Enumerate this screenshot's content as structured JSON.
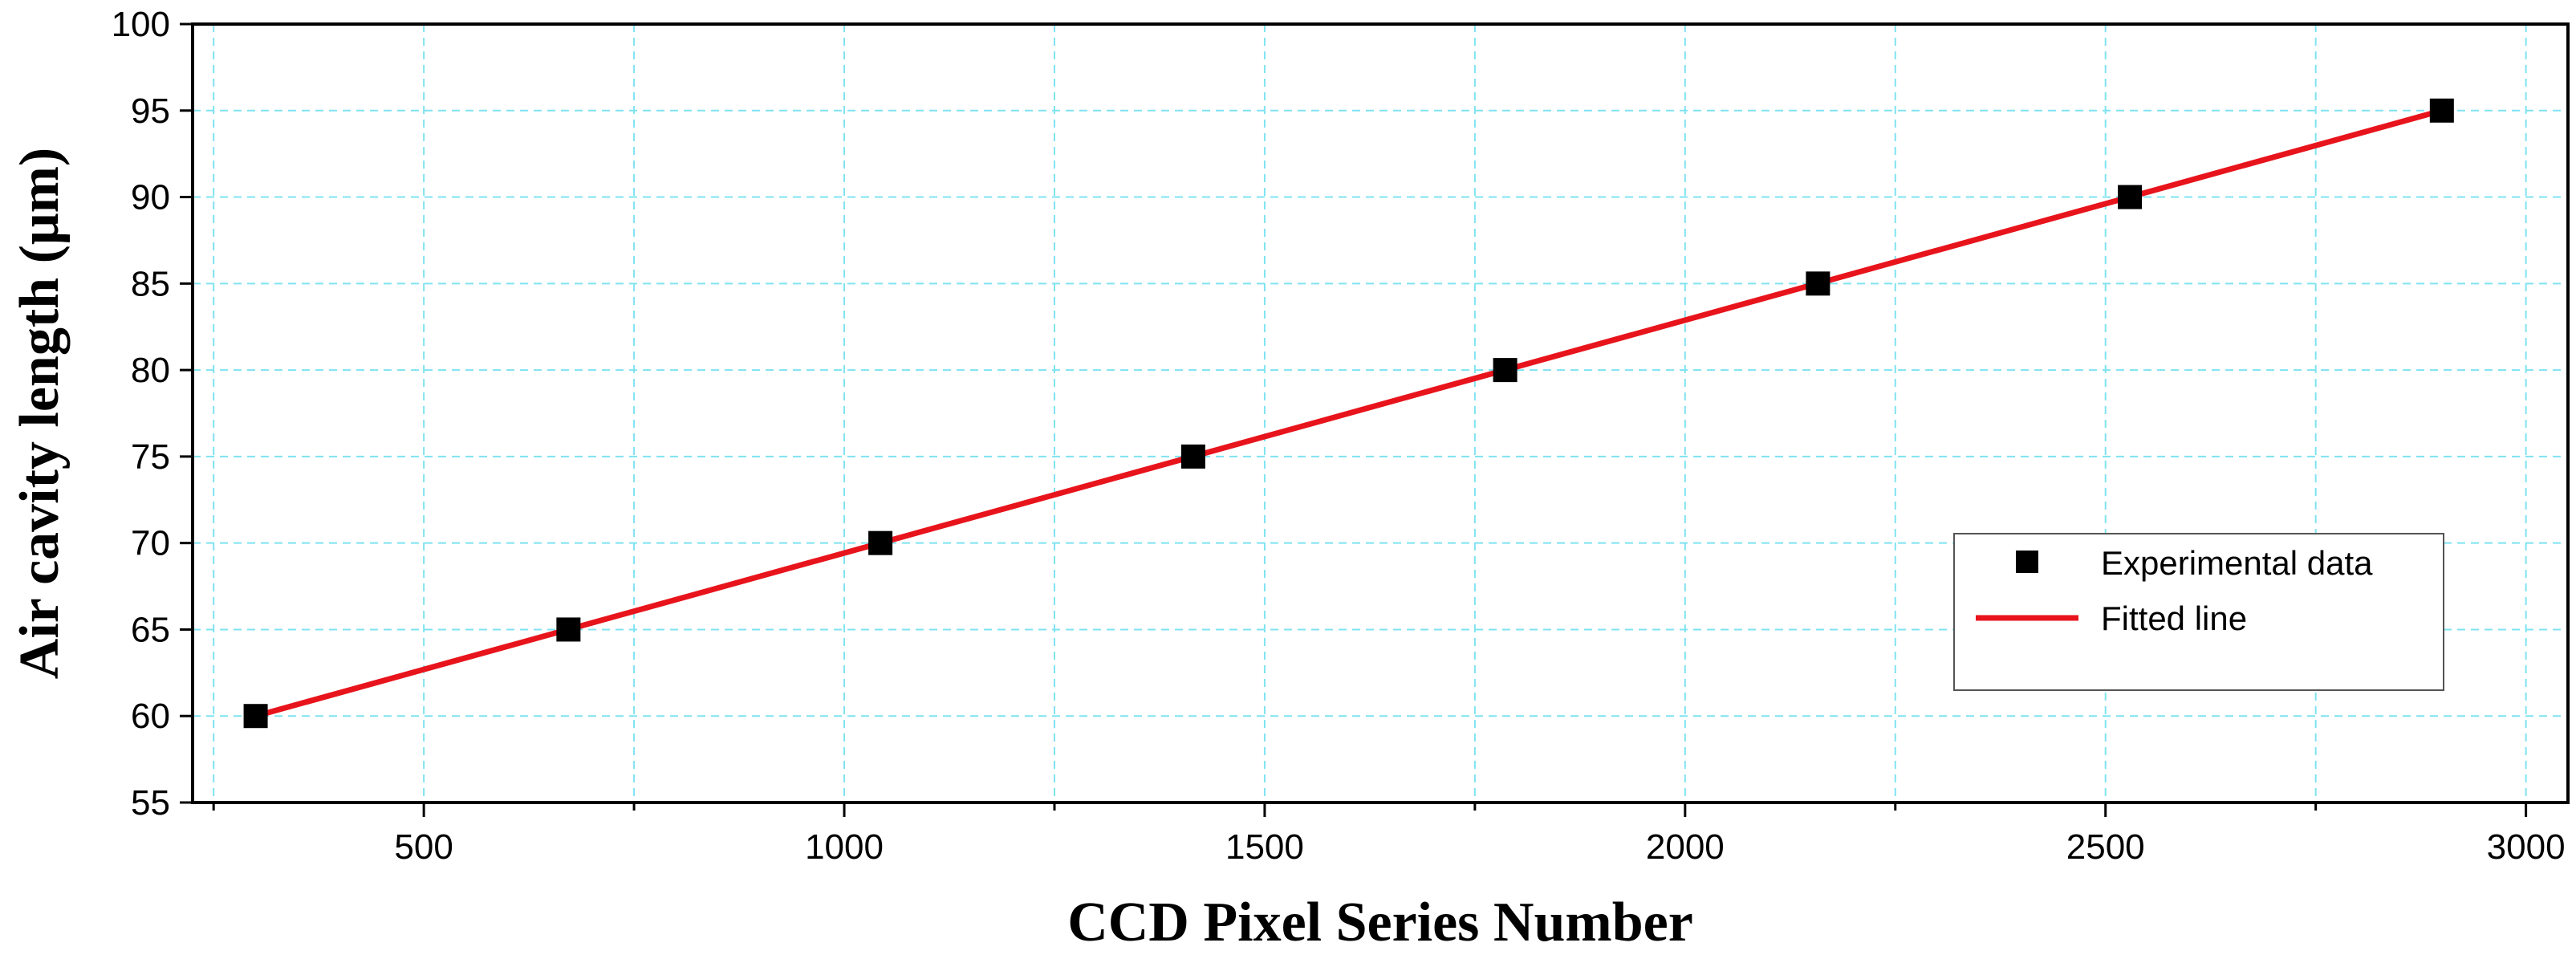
{
  "chart_data": {
    "type": "scatter",
    "title": "",
    "xlabel": "CCD Pixel Series Number",
    "ylabel": "Air cavity length (μm)",
    "xlim": [
      225,
      3050
    ],
    "ylim": [
      55,
      100
    ],
    "x_ticks": [
      500,
      1000,
      1500,
      2000,
      2500,
      3000
    ],
    "x_minor_ticks": [
      250,
      750,
      1250,
      1750,
      2250,
      2750
    ],
    "y_ticks": [
      55,
      60,
      65,
      70,
      75,
      80,
      85,
      90,
      95,
      100
    ],
    "grid": true,
    "grid_color": "#7fe3f0",
    "legend_position": "right",
    "series": [
      {
        "name": "Experimental data",
        "kind": "scatter",
        "marker": "square",
        "color": "#000000",
        "x": [
          300,
          672,
          1043,
          1415,
          1786,
          2158,
          2529,
          2900
        ],
        "y": [
          60,
          65,
          70,
          75,
          80,
          85,
          90,
          95
        ]
      },
      {
        "name": "Fitted line",
        "kind": "line",
        "color": "#e8141c",
        "x": [
          300,
          2900
        ],
        "y": [
          60,
          95
        ]
      }
    ]
  }
}
